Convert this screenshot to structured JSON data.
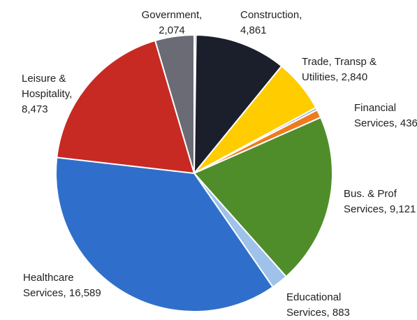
{
  "chart_data": {
    "type": "pie",
    "title": "",
    "start_angle_deg": 0,
    "direction": "clockwise",
    "legend": "none",
    "slices": [
      {
        "label": "Other",
        "value": 95,
        "color": "#8fb0d6",
        "label_lines": []
      },
      {
        "label": "Construction",
        "value": 4861,
        "color": "#1b1f2b",
        "label_lines": [
          "Construction,",
          "4,861"
        ]
      },
      {
        "label": "Trade, Transp & Utilities",
        "value": 2840,
        "color": "#ffcc00",
        "label_lines": [
          "Trade, Transp &",
          "Utilities, 2,840"
        ]
      },
      {
        "label": "Unlabeled",
        "value": 136,
        "color": "#8fb7d9",
        "label_lines": []
      },
      {
        "label": "Financial Services",
        "value": 436,
        "color": "#ef7b1f",
        "label_lines": [
          "Financial",
          "Services, 436"
        ]
      },
      {
        "label": "Bus. & Prof Services",
        "value": 9121,
        "color": "#4f8d2a",
        "label_lines": [
          "Bus. & Prof",
          "Services, 9,121"
        ]
      },
      {
        "label": "Educational Services",
        "value": 883,
        "color": "#9ec2e9",
        "label_lines": [
          "Educational",
          "Services, 883"
        ]
      },
      {
        "label": "Healthcare Services",
        "value": 16589,
        "color": "#2f6fcb",
        "label_lines": [
          "Healthcare",
          "Services, 16,589"
        ]
      },
      {
        "label": "Leisure & Hospitality",
        "value": 8473,
        "color": "#c72a22",
        "label_lines": [
          "Leisure &",
          "Hospitality,",
          "8,473"
        ]
      },
      {
        "label": "Government",
        "value": 2074,
        "color": "#6b6b76",
        "label_lines": [
          "Government,",
          "2,074"
        ]
      }
    ]
  }
}
